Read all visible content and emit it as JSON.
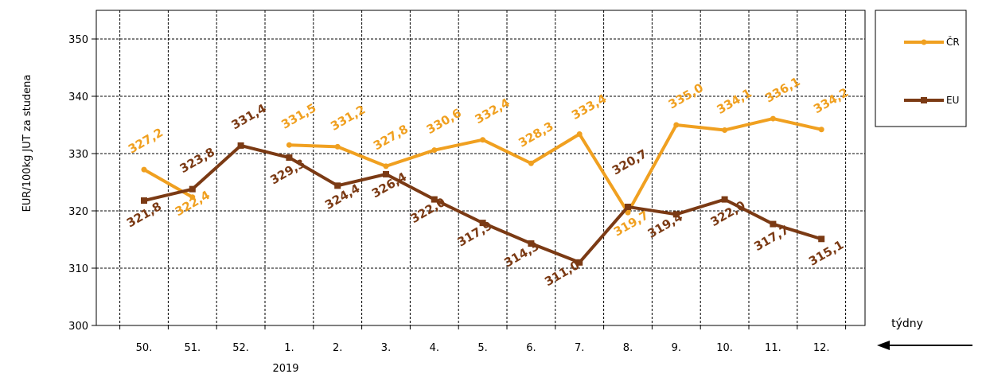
{
  "chart_data": {
    "type": "line",
    "ylabel": "EUR/100kg  JUT za studena",
    "ylim": [
      300,
      355
    ],
    "yticks": [
      300,
      310,
      320,
      330,
      340,
      350
    ],
    "categories": [
      "50.",
      "51.",
      "52.",
      "1.",
      "2.",
      "3.",
      "4.",
      "5.",
      "6.",
      "7.",
      "8.",
      "9.",
      "10.",
      "11.",
      "12."
    ],
    "year_label": "2019",
    "axis_note": "týdny",
    "grid": true,
    "legend_position": "right",
    "series": [
      {
        "name": "ČR",
        "color": "#F0A020",
        "values": [
          327.2,
          322.4,
          null,
          331.5,
          331.2,
          327.8,
          330.6,
          332.4,
          328.3,
          333.4,
          319.7,
          335.0,
          334.1,
          336.1,
          334.2
        ],
        "labels": [
          "327,2",
          "322,4",
          "",
          "331,5",
          "331,2",
          "327,8",
          "330,6",
          "332,4",
          "328,3",
          "333,4",
          "319,7",
          "335,0",
          "334,1",
          "336,1",
          "334,2"
        ]
      },
      {
        "name": "EU",
        "color": "#7B3A14",
        "values": [
          321.8,
          323.8,
          331.4,
          329.3,
          324.4,
          326.4,
          322.0,
          317.9,
          314.3,
          311.0,
          320.7,
          319.4,
          322.0,
          317.7,
          315.1
        ],
        "labels": [
          "321,8",
          "323,8",
          "331,4",
          "329,3",
          "324,4",
          "326,4",
          "322,0",
          "317,9",
          "314,3",
          "311,0",
          "320,7",
          "319,4",
          "322,0",
          "317,7",
          "315,1"
        ]
      }
    ]
  }
}
